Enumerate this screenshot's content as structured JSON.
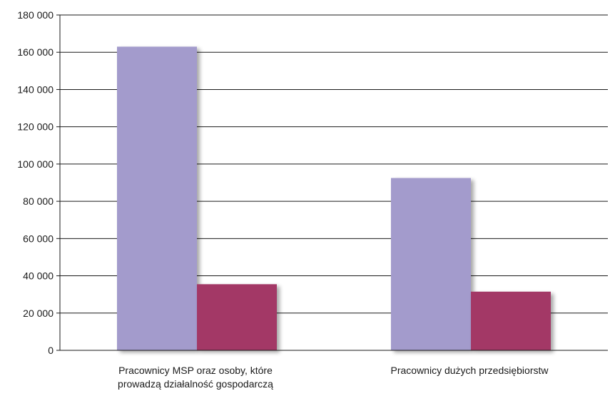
{
  "chart_data": {
    "type": "bar",
    "title": "",
    "xlabel": "",
    "ylabel": "",
    "categories": [
      [
        "Pracownicy MSP oraz osoby, które",
        "prowadzą działalność gospodarczą"
      ],
      [
        "Pracownicy dużych przedsiębiorstw"
      ]
    ],
    "series": [
      {
        "color": "#a39bcc",
        "values": [
          163000,
          92500
        ]
      },
      {
        "color": "#a33966",
        "values": [
          35500,
          31500
        ]
      }
    ],
    "ylim": [
      0,
      180000
    ],
    "yticks": [
      0,
      20000,
      40000,
      60000,
      80000,
      100000,
      120000,
      140000,
      160000,
      180000
    ],
    "ytick_labels": [
      "0",
      "20 000",
      "40 000",
      "60 000",
      "80 000",
      "100 000",
      "120 000",
      "140 000",
      "160 000",
      "180 000"
    ],
    "grid": true,
    "legend": "none"
  }
}
